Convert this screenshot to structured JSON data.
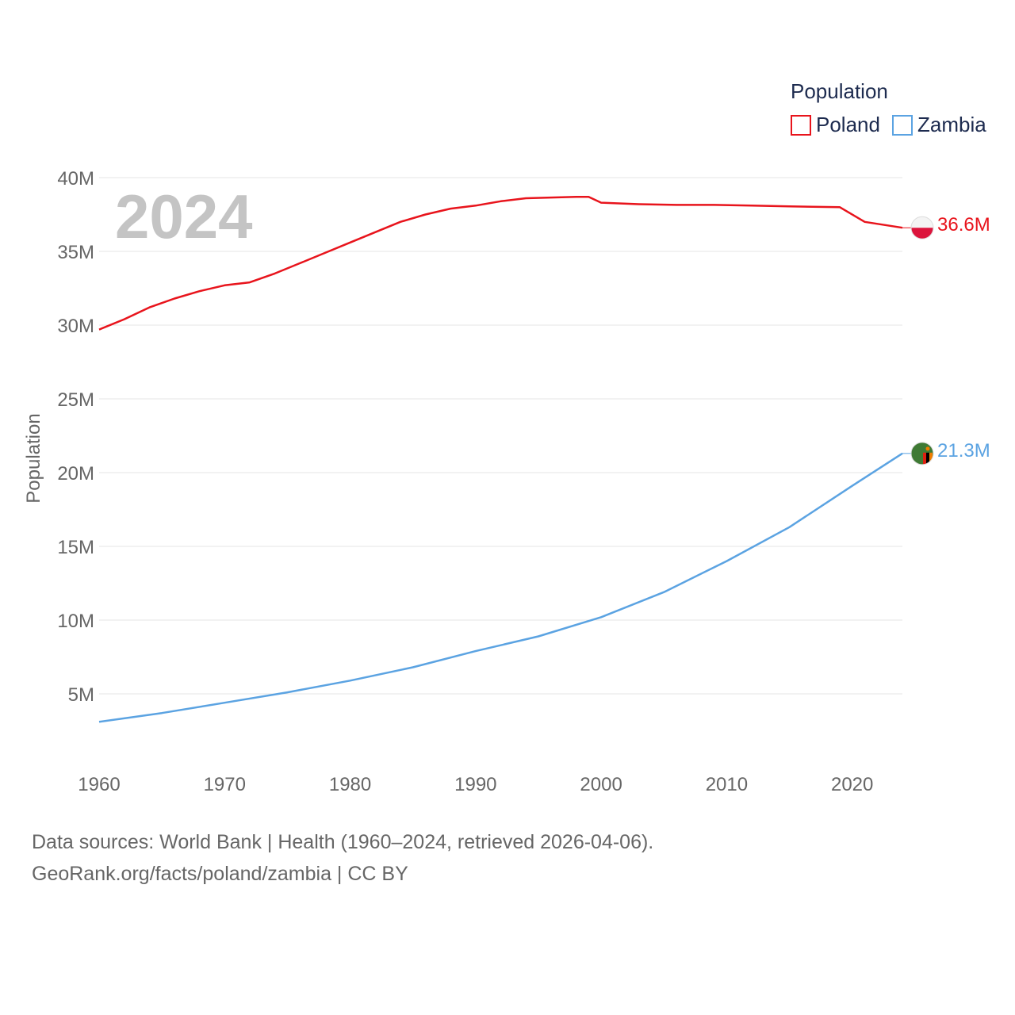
{
  "legend": {
    "title": "Population"
  },
  "watermark_year": "2024",
  "footer": {
    "source": "Data sources: World Bank | Health (1960–2024, retrieved 2026-04-06).",
    "credit": "GeoRank.org/facts/poland/zambia | CC BY"
  },
  "chart_data": {
    "type": "line",
    "title": "",
    "xlabel": "",
    "ylabel": "Population",
    "xlim": [
      1960,
      2024
    ],
    "ylim": [
      0,
      40000000
    ],
    "x_ticks": [
      "1960",
      "1970",
      "1980",
      "1990",
      "2000",
      "2010",
      "2020"
    ],
    "y_ticks": [
      "5M",
      "10M",
      "15M",
      "20M",
      "25M",
      "30M",
      "35M",
      "40M"
    ],
    "series": [
      {
        "name": "Poland",
        "color": "#e8141c",
        "end_label": "36.6M",
        "flag": "poland-flag",
        "points": [
          [
            1960,
            29.7
          ],
          [
            1962,
            30.4
          ],
          [
            1964,
            31.2
          ],
          [
            1966,
            31.8
          ],
          [
            1968,
            32.3
          ],
          [
            1970,
            32.7
          ],
          [
            1972,
            32.9
          ],
          [
            1974,
            33.5
          ],
          [
            1976,
            34.2
          ],
          [
            1978,
            34.9
          ],
          [
            1980,
            35.6
          ],
          [
            1982,
            36.3
          ],
          [
            1984,
            37.0
          ],
          [
            1986,
            37.5
          ],
          [
            1988,
            37.9
          ],
          [
            1990,
            38.1
          ],
          [
            1992,
            38.4
          ],
          [
            1994,
            38.6
          ],
          [
            1996,
            38.65
          ],
          [
            1998,
            38.7
          ],
          [
            1999,
            38.7
          ],
          [
            2000,
            38.3
          ],
          [
            2003,
            38.2
          ],
          [
            2006,
            38.15
          ],
          [
            2009,
            38.15
          ],
          [
            2012,
            38.1
          ],
          [
            2015,
            38.05
          ],
          [
            2019,
            38.0
          ],
          [
            2021,
            37.0
          ],
          [
            2024,
            36.6
          ]
        ]
      },
      {
        "name": "Zambia",
        "color": "#5ba3e2",
        "end_label": "21.3M",
        "flag": "zambia-flag",
        "points": [
          [
            1960,
            3.1
          ],
          [
            1965,
            3.7
          ],
          [
            1970,
            4.4
          ],
          [
            1975,
            5.1
          ],
          [
            1980,
            5.9
          ],
          [
            1985,
            6.8
          ],
          [
            1990,
            7.9
          ],
          [
            1995,
            8.9
          ],
          [
            2000,
            10.2
          ],
          [
            2005,
            11.9
          ],
          [
            2010,
            14.0
          ],
          [
            2015,
            16.3
          ],
          [
            2020,
            19.1
          ],
          [
            2024,
            21.3
          ]
        ]
      }
    ]
  }
}
